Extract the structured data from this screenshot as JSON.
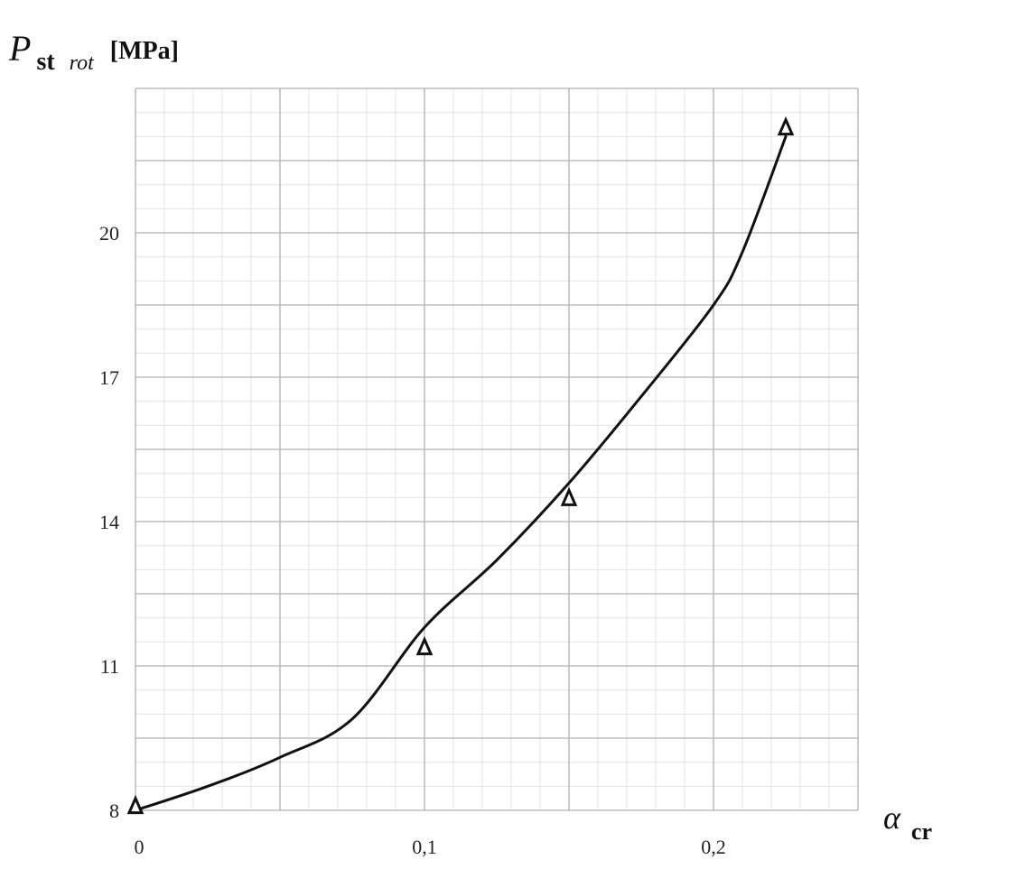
{
  "chart_data": {
    "type": "line",
    "title": "",
    "ylabel": {
      "symbol": "P",
      "sub_main": "st",
      "sub_italic": "rot",
      "unit": "[MPa]"
    },
    "xlabel": {
      "symbol": "α",
      "sub": "cr"
    },
    "xlim": [
      0,
      0.25
    ],
    "ylim": [
      8,
      23
    ],
    "x_ticks": [
      {
        "value": 0,
        "label": "0"
      },
      {
        "value": 0.1,
        "label": "0,1"
      },
      {
        "value": 0.2,
        "label": "0,2"
      }
    ],
    "y_ticks": [
      {
        "value": 8,
        "label": "8"
      },
      {
        "value": 11,
        "label": "11"
      },
      {
        "value": 14,
        "label": "14"
      },
      {
        "value": 17,
        "label": "17"
      },
      {
        "value": 20,
        "label": "20"
      }
    ],
    "grid": true,
    "series": [
      {
        "marker": "triangle",
        "points": [
          {
            "x": 0,
            "y": 8.1
          },
          {
            "x": 0.1,
            "y": 11.4
          },
          {
            "x": 0.15,
            "y": 14.5
          },
          {
            "x": 0.225,
            "y": 22.2
          }
        ],
        "curve": [
          {
            "x": 0,
            "y": 8.0
          },
          {
            "x": 0.025,
            "y": 8.5
          },
          {
            "x": 0.05,
            "y": 9.1
          },
          {
            "x": 0.075,
            "y": 9.9
          },
          {
            "x": 0.1,
            "y": 11.8
          },
          {
            "x": 0.125,
            "y": 13.2
          },
          {
            "x": 0.15,
            "y": 14.8
          },
          {
            "x": 0.175,
            "y": 16.6
          },
          {
            "x": 0.2,
            "y": 18.5
          },
          {
            "x": 0.21,
            "y": 19.6
          },
          {
            "x": 0.225,
            "y": 22.0
          }
        ]
      }
    ]
  }
}
